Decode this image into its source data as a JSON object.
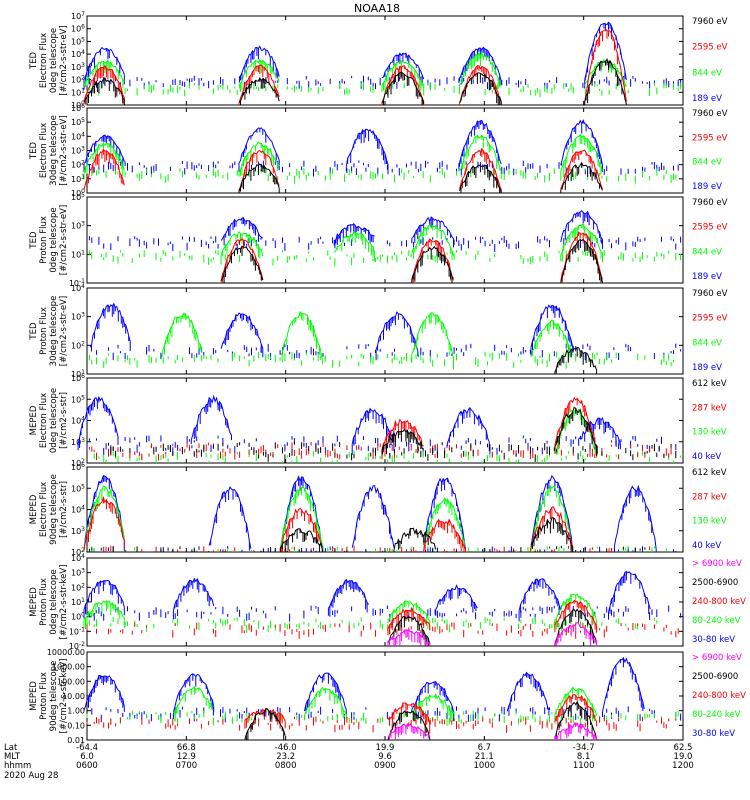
{
  "title": "NOAA18",
  "x_axis": {
    "rows": [
      {
        "name": "Lat",
        "values": [
          "-64.4",
          "66.8",
          "-46.0",
          "19.9",
          "6.7",
          "-34.7",
          "62.5"
        ]
      },
      {
        "name": "MLT",
        "values": [
          "6.0",
          "12.9",
          "23.2",
          "9.6",
          "21.1",
          "8.1",
          "19.0"
        ]
      },
      {
        "name": "hhmm",
        "values": [
          "0600",
          "0700",
          "0800",
          "0900",
          "1000",
          "1100",
          "1200"
        ]
      }
    ],
    "date": "2020 Aug 28"
  },
  "colors": {
    "blue": "#0000ff",
    "red": "#ff0000",
    "green": "#00ff00",
    "black": "#000000",
    "magenta": "#ff00ff"
  },
  "chart_data": [
    {
      "type": "line",
      "panel": 1,
      "ylabel": [
        "TED",
        "Electron Flux",
        "0deg telescope",
        "[#/cm2-s-str-eV]"
      ],
      "yscale": "log",
      "ylim": [
        1,
        10000000
      ],
      "yticks": [
        "10^0",
        "10^1",
        "10^2",
        "10^3",
        "10^4",
        "10^5",
        "10^6",
        "10^7"
      ],
      "legend": [
        {
          "label": "7960 eV",
          "color": "#000000"
        },
        {
          "label": "2595 eV",
          "color": "#ff0000"
        },
        {
          "label": "844 eV",
          "color": "#00ff00"
        },
        {
          "label": "189 eV",
          "color": "#0000ff"
        }
      ],
      "series": [
        {
          "name": "189 eV",
          "color": "#0000ff",
          "level": 100,
          "peaks": [
            [
              0.03,
              30000
            ],
            [
              0.29,
              30000
            ],
            [
              0.53,
              10000
            ],
            [
              0.66,
              30000
            ],
            [
              0.87,
              3000000
            ]
          ]
        },
        {
          "name": "844 eV",
          "color": "#00ff00",
          "level": 30,
          "peaks": [
            [
              0.03,
              3000
            ],
            [
              0.29,
              3000
            ],
            [
              0.53,
              3000
            ],
            [
              0.66,
              10000
            ],
            [
              0.87,
              3000
            ]
          ]
        },
        {
          "name": "2595 eV",
          "color": "#ff0000",
          "level": 0,
          "peaks": [
            [
              0.03,
              1000
            ],
            [
              0.29,
              1000
            ],
            [
              0.53,
              1000
            ],
            [
              0.66,
              1000
            ],
            [
              0.87,
              1000000
            ]
          ]
        },
        {
          "name": "7960 eV",
          "color": "#000000",
          "level": 0,
          "peaks": [
            [
              0.03,
              100
            ],
            [
              0.29,
              100
            ],
            [
              0.53,
              300
            ],
            [
              0.66,
              300
            ],
            [
              0.87,
              3000
            ]
          ]
        }
      ]
    },
    {
      "type": "line",
      "panel": 2,
      "ylabel": [
        "TED",
        "Electron Flux",
        "30deg telescope",
        "[#/cm2-s-str-eV]"
      ],
      "yscale": "log",
      "ylim": [
        1,
        1000000
      ],
      "yticks": [
        "10^0",
        "10^1",
        "10^2",
        "10^3",
        "10^4",
        "10^5",
        "10^6"
      ],
      "legend": [
        {
          "label": "7960 eV",
          "color": "#000000"
        },
        {
          "label": "2595 eV",
          "color": "#ff0000"
        },
        {
          "label": "844 eV",
          "color": "#00ff00"
        },
        {
          "label": "189 eV",
          "color": "#0000ff"
        }
      ],
      "series": [
        {
          "name": "189 eV",
          "color": "#0000ff",
          "level": 100,
          "peaks": [
            [
              0.03,
              10000
            ],
            [
              0.29,
              30000
            ],
            [
              0.47,
              30000
            ],
            [
              0.66,
              100000
            ],
            [
              0.83,
              100000
            ]
          ]
        },
        {
          "name": "844 eV",
          "color": "#00ff00",
          "level": 30,
          "peaks": [
            [
              0.03,
              3000
            ],
            [
              0.29,
              3000
            ],
            [
              0.66,
              10000
            ],
            [
              0.83,
              10000
            ]
          ]
        },
        {
          "name": "2595 eV",
          "color": "#ff0000",
          "level": 0,
          "peaks": [
            [
              0.03,
              1000
            ],
            [
              0.29,
              1000
            ],
            [
              0.66,
              1000
            ],
            [
              0.83,
              1000
            ]
          ]
        },
        {
          "name": "7960 eV",
          "color": "#000000",
          "level": 0,
          "peaks": [
            [
              0.29,
              100
            ],
            [
              0.66,
              100
            ],
            [
              0.83,
              100
            ]
          ]
        }
      ]
    },
    {
      "type": "line",
      "panel": 3,
      "ylabel": [
        "TED",
        "Proton Flux",
        "0deg telescope",
        "[#/cm2-s-str-eV]"
      ],
      "yscale": "log",
      "ylim": [
        0.1,
        100000
      ],
      "yticks": [
        "10^-1",
        "10^1",
        "10^3",
        "10^5"
      ],
      "legend": [
        {
          "label": "7960 eV",
          "color": "#000000"
        },
        {
          "label": "2595 eV",
          "color": "#ff0000"
        },
        {
          "label": "844 eV",
          "color": "#00ff00"
        },
        {
          "label": "189 eV",
          "color": "#0000ff"
        }
      ],
      "series": [
        {
          "name": "189 eV",
          "color": "#0000ff",
          "level": 100,
          "peaks": [
            [
              0.26,
              3000
            ],
            [
              0.45,
              1000
            ],
            [
              0.58,
              3000
            ],
            [
              0.83,
              10000
            ]
          ]
        },
        {
          "name": "844 eV",
          "color": "#00ff00",
          "level": 10,
          "peaks": [
            [
              0.26,
              300
            ],
            [
              0.45,
              300
            ],
            [
              0.58,
              1000
            ],
            [
              0.83,
              1000
            ]
          ]
        },
        {
          "name": "2595 eV",
          "color": "#ff0000",
          "level": 0,
          "peaks": [
            [
              0.26,
              100
            ],
            [
              0.58,
              100
            ],
            [
              0.83,
              300
            ]
          ]
        },
        {
          "name": "7960 eV",
          "color": "#000000",
          "level": 0,
          "peaks": [
            [
              0.26,
              30
            ],
            [
              0.58,
              30
            ],
            [
              0.83,
              100
            ]
          ]
        }
      ]
    },
    {
      "type": "line",
      "panel": 4,
      "ylabel": [
        "TED",
        "Proton Flux",
        "30deg telescope",
        "[#/cm2-s-str-eV]"
      ],
      "yscale": "log",
      "ylim": [
        1,
        100000
      ],
      "yticks": [
        "10^1",
        "10^2",
        "10^3",
        "10^4"
      ],
      "legend": [
        {
          "label": "7960 eV",
          "color": "#000000"
        },
        {
          "label": "2595 eV",
          "color": "#ff0000"
        },
        {
          "label": "844 eV",
          "color": "#00ff00"
        },
        {
          "label": "189 eV",
          "color": "#0000ff"
        }
      ],
      "series": [
        {
          "name": "189 eV",
          "color": "#0000ff",
          "level": 30,
          "peaks": [
            [
              0.04,
              10000
            ],
            [
              0.26,
              3000
            ],
            [
              0.52,
              3000
            ],
            [
              0.78,
              10000
            ]
          ]
        },
        {
          "name": "844 eV",
          "color": "#00ff00",
          "level": 10,
          "peaks": [
            [
              0.16,
              3000
            ],
            [
              0.36,
              3000
            ],
            [
              0.58,
              3000
            ],
            [
              0.78,
              1000
            ]
          ]
        },
        {
          "name": "2595 eV",
          "color": "#ff0000",
          "level": 0,
          "peaks": []
        },
        {
          "name": "7960 eV",
          "color": "#000000",
          "level": 0,
          "peaks": [
            [
              0.82,
              30
            ]
          ]
        }
      ]
    },
    {
      "type": "line",
      "panel": 5,
      "ylabel": [
        "MEPED",
        "Electron Flux",
        "0deg telescope",
        "[#/cm2-s-str]"
      ],
      "yscale": "log",
      "ylim": [
        100,
        1000000
      ],
      "yticks": [
        "10^2",
        "10^3",
        "10^4",
        "10^5",
        "10^6"
      ],
      "legend": [
        {
          "label": "612 keV",
          "color": "#000000"
        },
        {
          "label": "287 keV",
          "color": "#ff0000"
        },
        {
          "label": "130 keV",
          "color": "#00ff00"
        },
        {
          "label": "40 keV",
          "color": "#0000ff"
        }
      ],
      "series": [
        {
          "name": "40 keV",
          "color": "#0000ff",
          "level": 1000,
          "peaks": [
            [
              0.02,
              100000
            ],
            [
              0.21,
              100000
            ],
            [
              0.48,
              30000
            ],
            [
              0.64,
              30000
            ],
            [
              0.86,
              10000
            ]
          ]
        },
        {
          "name": "130 keV",
          "color": "#00ff00",
          "level": 200,
          "peaks": [
            [
              0.82,
              30000
            ]
          ]
        },
        {
          "name": "287 keV",
          "color": "#ff0000",
          "level": 500,
          "peaks": [
            [
              0.53,
              10000
            ],
            [
              0.82,
              100000
            ]
          ]
        },
        {
          "name": "612 keV",
          "color": "#000000",
          "level": 500,
          "peaks": [
            [
              0.53,
              3000
            ],
            [
              0.82,
              30000
            ]
          ]
        }
      ]
    },
    {
      "type": "line",
      "panel": 6,
      "ylabel": [
        "MEPED",
        "Electron Flux",
        "90deg telescope",
        "[#/cm2-s-str]"
      ],
      "yscale": "log",
      "ylim": [
        100,
        1000000
      ],
      "yticks": [
        "10^2",
        "10^3",
        "10^4",
        "10^5",
        "10^6"
      ],
      "legend": [
        {
          "label": "612 keV",
          "color": "#000000"
        },
        {
          "label": "287 keV",
          "color": "#ff0000"
        },
        {
          "label": "130 keV",
          "color": "#00ff00"
        },
        {
          "label": "40 keV",
          "color": "#0000ff"
        }
      ],
      "series": [
        {
          "name": "40 keV",
          "color": "#0000ff",
          "level": 100,
          "peaks": [
            [
              0.03,
              300000
            ],
            [
              0.24,
              100000
            ],
            [
              0.36,
              300000
            ],
            [
              0.48,
              100000
            ],
            [
              0.6,
              300000
            ],
            [
              0.78,
              300000
            ],
            [
              0.92,
              100000
            ]
          ]
        },
        {
          "name": "130 keV",
          "color": "#00ff00",
          "level": 100,
          "peaks": [
            [
              0.03,
              100000
            ],
            [
              0.36,
              100000
            ],
            [
              0.6,
              30000
            ],
            [
              0.78,
              100000
            ]
          ]
        },
        {
          "name": "287 keV",
          "color": "#ff0000",
          "level": 100,
          "peaks": [
            [
              0.03,
              30000
            ],
            [
              0.36,
              10000
            ],
            [
              0.6,
              3000
            ],
            [
              0.78,
              10000
            ]
          ]
        },
        {
          "name": "612 keV",
          "color": "#000000",
          "level": 100,
          "peaks": [
            [
              0.36,
              1000
            ],
            [
              0.55,
              1000
            ],
            [
              0.78,
              3000
            ]
          ]
        }
      ]
    },
    {
      "type": "line",
      "panel": 7,
      "ylabel": [
        "MEPED",
        "Proton Flux",
        "0deg telescope",
        "[#/cm2-s-str-keV]"
      ],
      "yscale": "log",
      "ylim": [
        0.01,
        10000
      ],
      "yticks": [
        "10^-2",
        "10^-1",
        "10^0",
        "10^1",
        "10^2",
        "10^3",
        "10^4"
      ],
      "legend": [
        {
          "label": "> 6900 keV",
          "color": "#ff00ff"
        },
        {
          "label": "2500-6900",
          "color": "#000000"
        },
        {
          "label": "240-800 keV",
          "color": "#ff0000"
        },
        {
          "label": "80-240 keV",
          "color": "#00ff00"
        },
        {
          "label": "30-80 keV",
          "color": "#0000ff"
        }
      ],
      "series": [
        {
          "name": "30-80 keV",
          "color": "#0000ff",
          "level": 3,
          "peaks": [
            [
              0.03,
              300
            ],
            [
              0.18,
              300
            ],
            [
              0.44,
              300
            ],
            [
              0.62,
              100
            ],
            [
              0.76,
              300
            ],
            [
              0.91,
              1000
            ]
          ]
        },
        {
          "name": "80-240 keV",
          "color": "#00ff00",
          "level": 0.5,
          "peaks": [
            [
              0.03,
              10
            ],
            [
              0.54,
              10
            ],
            [
              0.82,
              30
            ]
          ]
        },
        {
          "name": "240-800 keV",
          "color": "#ff0000",
          "level": 0.2,
          "peaks": [
            [
              0.54,
              3
            ],
            [
              0.82,
              10
            ]
          ]
        },
        {
          "name": "2500-6900",
          "color": "#000000",
          "level": 0,
          "peaks": [
            [
              0.54,
              1
            ],
            [
              0.82,
              3
            ]
          ]
        },
        {
          "name": "> 6900 keV",
          "color": "#ff00ff",
          "level": 0,
          "peaks": [
            [
              0.54,
              0.1
            ],
            [
              0.82,
              0.3
            ]
          ]
        }
      ]
    },
    {
      "type": "line",
      "panel": 8,
      "ylabel": [
        "MEPED",
        "Proton Flux",
        "90deg telescope",
        "[#/cm2-s-str-keV]"
      ],
      "yscale": "log",
      "ylim": [
        0.01,
        10000
      ],
      "yticks": [
        "0.01",
        "0.10",
        "1.00",
        "10.00",
        "100.00",
        "1000.00",
        "10000.00"
      ],
      "legend": [
        {
          "label": "> 6900 keV",
          "color": "#ff00ff"
        },
        {
          "label": "2500-6900",
          "color": "#000000"
        },
        {
          "label": "240-800 keV",
          "color": "#ff0000"
        },
        {
          "label": "80-240 keV",
          "color": "#00ff00"
        },
        {
          "label": "30-80 keV",
          "color": "#0000ff"
        }
      ],
      "series": [
        {
          "name": "30-80 keV",
          "color": "#0000ff",
          "level": 1,
          "peaks": [
            [
              0.03,
              300
            ],
            [
              0.18,
              300
            ],
            [
              0.4,
              300
            ],
            [
              0.58,
              100
            ],
            [
              0.74,
              300
            ],
            [
              0.9,
              3000
            ]
          ]
        },
        {
          "name": "80-240 keV",
          "color": "#00ff00",
          "level": 0.5,
          "peaks": [
            [
              0.18,
              30
            ],
            [
              0.4,
              30
            ],
            [
              0.58,
              10
            ],
            [
              0.82,
              30
            ]
          ]
        },
        {
          "name": "240-800 keV",
          "color": "#ff0000",
          "level": 0.2,
          "peaks": [
            [
              0.3,
              1
            ],
            [
              0.54,
              3
            ],
            [
              0.82,
              10
            ]
          ]
        },
        {
          "name": "2500-6900",
          "color": "#000000",
          "level": 0,
          "peaks": [
            [
              0.3,
              1
            ],
            [
              0.54,
              1
            ],
            [
              0.82,
              3
            ]
          ]
        },
        {
          "name": "> 6900 keV",
          "color": "#ff00ff",
          "level": 0,
          "peaks": [
            [
              0.54,
              0.1
            ],
            [
              0.82,
              0.1
            ]
          ]
        }
      ]
    }
  ]
}
